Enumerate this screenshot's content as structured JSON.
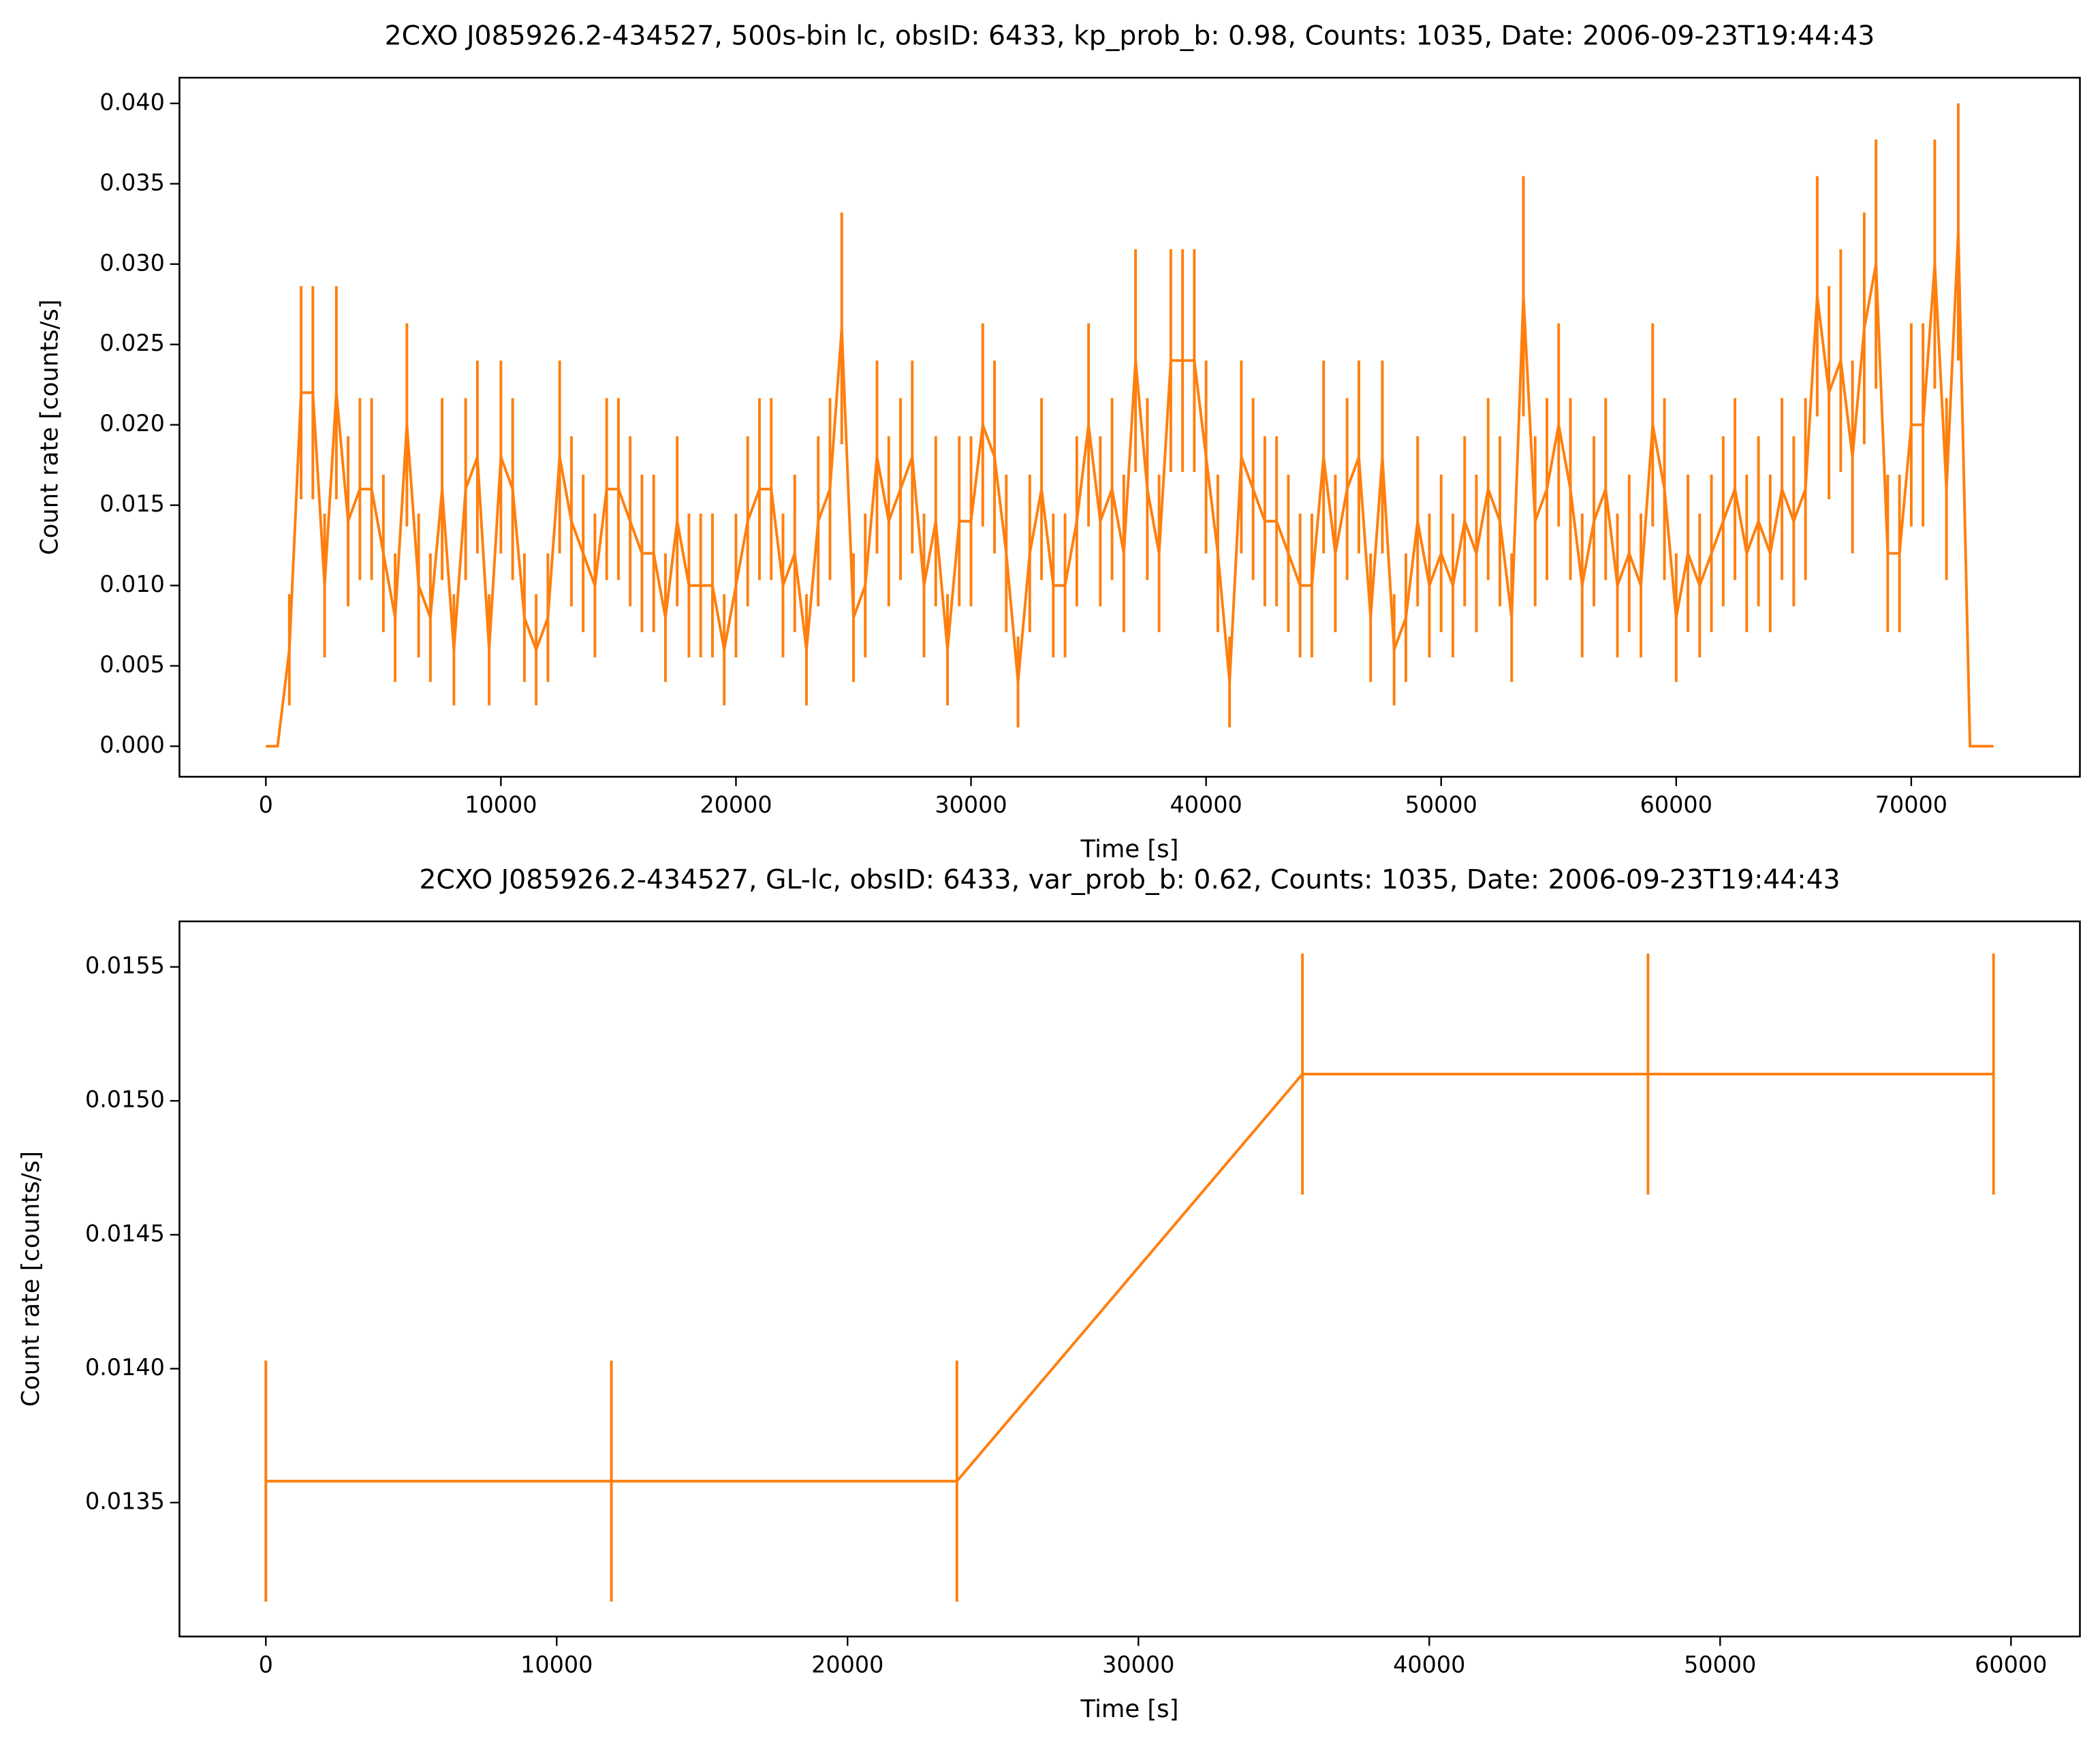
{
  "chart_data": [
    {
      "type": "errorbar",
      "title": "2CXO J085926.2-434527, 500s-bin lc, obsID: 6433, kp_prob_b: 0.98, Counts: 1035, Date: 2006-09-23T19:44:43",
      "xlabel": "Time [s]",
      "ylabel": "Count rate [counts/s]",
      "color": "#ff7f0e",
      "x": [
        0,
        500,
        1000,
        1500,
        2000,
        2500,
        3000,
        3500,
        4000,
        4500,
        5000,
        5500,
        6000,
        6500,
        7000,
        7500,
        8000,
        8500,
        9000,
        9500,
        10000,
        10500,
        11000,
        11500,
        12000,
        12500,
        13000,
        13500,
        14000,
        14500,
        15000,
        15500,
        16000,
        16500,
        17000,
        17500,
        18000,
        18500,
        19000,
        19500,
        20000,
        20500,
        21000,
        21500,
        22000,
        22500,
        23000,
        23500,
        24000,
        24500,
        25000,
        25500,
        26000,
        26500,
        27000,
        27500,
        28000,
        28500,
        29000,
        29500,
        30000,
        30500,
        31000,
        31500,
        32000,
        32500,
        33000,
        33500,
        34000,
        34500,
        35000,
        35500,
        36000,
        36500,
        37000,
        37500,
        38000,
        38500,
        39000,
        39500,
        40000,
        40500,
        41000,
        41500,
        42000,
        42500,
        43000,
        43500,
        44000,
        44500,
        45000,
        45500,
        46000,
        46500,
        47000,
        47500,
        48000,
        48500,
        49000,
        49500,
        50000,
        50500,
        51000,
        51500,
        52000,
        52500,
        53000,
        53500,
        54000,
        54500,
        55000,
        55500,
        56000,
        56500,
        57000,
        57500,
        58000,
        58500,
        59000,
        59500,
        60000,
        60500,
        61000,
        61500,
        62000,
        62500,
        63000,
        63500,
        64000,
        64500,
        65000,
        65500,
        66000,
        66500,
        67000,
        67500,
        68000,
        68500,
        69000,
        69500,
        70000,
        70500,
        71000,
        71500,
        72000,
        72500,
        73000,
        73500
      ],
      "values": [
        0,
        0,
        0.006,
        0.022,
        0.022,
        0.01,
        0.022,
        0.014,
        0.016,
        0.016,
        0.012,
        0.008,
        0.02,
        0.01,
        0.008,
        0.016,
        0.006,
        0.016,
        0.018,
        0.006,
        0.018,
        0.016,
        0.008,
        0.006,
        0.008,
        0.018,
        0.014,
        0.012,
        0.01,
        0.016,
        0.016,
        0.014,
        0.012,
        0.012,
        0.008,
        0.014,
        0.01,
        0.01,
        0.01,
        0.006,
        0.01,
        0.014,
        0.016,
        0.016,
        0.01,
        0.012,
        0.006,
        0.014,
        0.016,
        0.026,
        0.008,
        0.01,
        0.018,
        0.014,
        0.016,
        0.018,
        0.01,
        0.014,
        0.006,
        0.014,
        0.014,
        0.02,
        0.018,
        0.012,
        0.004,
        0.012,
        0.016,
        0.01,
        0.01,
        0.014,
        0.02,
        0.014,
        0.016,
        0.012,
        0.024,
        0.016,
        0.012,
        0.024,
        0.024,
        0.024,
        0.018,
        0.012,
        0.004,
        0.018,
        0.016,
        0.014,
        0.014,
        0.012,
        0.01,
        0.01,
        0.018,
        0.012,
        0.016,
        0.018,
        0.008,
        0.018,
        0.006,
        0.008,
        0.014,
        0.01,
        0.012,
        0.01,
        0.014,
        0.012,
        0.016,
        0.014,
        0.008,
        0.028,
        0.014,
        0.016,
        0.02,
        0.016,
        0.01,
        0.014,
        0.016,
        0.01,
        0.012,
        0.01,
        0.02,
        0.016,
        0.008,
        0.012,
        0.01,
        0.012,
        0.014,
        0.016,
        0.012,
        0.014,
        0.012,
        0.016,
        0.014,
        0.016,
        0.028,
        0.022,
        0.024,
        0.018,
        0.026,
        0.03,
        0.012,
        0.012,
        0.02,
        0.02,
        0.03,
        0.016,
        0.032,
        0,
        0,
        0
      ],
      "errors": [
        0,
        0,
        0.00346,
        0.00663,
        0.00663,
        0.00447,
        0.00663,
        0.00529,
        0.00566,
        0.00566,
        0.0049,
        0.004,
        0.00632,
        0.00447,
        0.004,
        0.00566,
        0.00346,
        0.00566,
        0.006,
        0.00346,
        0.006,
        0.00566,
        0.004,
        0.00346,
        0.004,
        0.006,
        0.00529,
        0.0049,
        0.00447,
        0.00566,
        0.00566,
        0.00529,
        0.0049,
        0.0049,
        0.004,
        0.00529,
        0.00447,
        0.00447,
        0.00447,
        0.00346,
        0.00447,
        0.00529,
        0.00566,
        0.00566,
        0.00447,
        0.0049,
        0.00346,
        0.00529,
        0.00566,
        0.00721,
        0.004,
        0.00447,
        0.006,
        0.00529,
        0.00566,
        0.006,
        0.00447,
        0.00529,
        0.00346,
        0.00529,
        0.00529,
        0.00632,
        0.006,
        0.0049,
        0.00283,
        0.0049,
        0.00566,
        0.00447,
        0.00447,
        0.00529,
        0.00632,
        0.00529,
        0.00566,
        0.0049,
        0.00693,
        0.00566,
        0.0049,
        0.00693,
        0.00693,
        0.00693,
        0.006,
        0.0049,
        0.00283,
        0.006,
        0.00566,
        0.00529,
        0.00529,
        0.0049,
        0.00447,
        0.00447,
        0.006,
        0.0049,
        0.00566,
        0.006,
        0.004,
        0.006,
        0.00346,
        0.004,
        0.00529,
        0.00447,
        0.0049,
        0.00447,
        0.00529,
        0.0049,
        0.00566,
        0.00529,
        0.004,
        0.00748,
        0.00529,
        0.00566,
        0.00632,
        0.00566,
        0.00447,
        0.00529,
        0.00566,
        0.00447,
        0.0049,
        0.00447,
        0.00632,
        0.00566,
        0.004,
        0.0049,
        0.00447,
        0.0049,
        0.00529,
        0.00566,
        0.0049,
        0.00529,
        0.0049,
        0.00566,
        0.00529,
        0.00566,
        0.00748,
        0.00663,
        0.00693,
        0.006,
        0.00721,
        0.00775,
        0.0049,
        0.0049,
        0.00632,
        0.00632,
        0.00775,
        0.00566,
        0.008,
        0,
        0,
        0
      ],
      "xlim": [
        -3675,
        77175
      ],
      "ylim": [
        -0.0019,
        0.0416
      ],
      "xticks": [
        0,
        10000,
        20000,
        30000,
        40000,
        50000,
        60000,
        70000
      ],
      "yticks": [
        {
          "value": 0,
          "label": "0.000"
        },
        {
          "value": 0.005,
          "label": "0.005"
        },
        {
          "value": 0.01,
          "label": "0.010"
        },
        {
          "value": 0.015,
          "label": "0.015"
        },
        {
          "value": 0.02,
          "label": "0.020"
        },
        {
          "value": 0.025,
          "label": "0.025"
        },
        {
          "value": 0.03,
          "label": "0.030"
        },
        {
          "value": 0.035,
          "label": "0.035"
        },
        {
          "value": 0.04,
          "label": "0.040"
        }
      ]
    },
    {
      "type": "errorbar",
      "title": "2CXO J085926.2-434527, GL-lc, obsID: 6433, var_prob_b: 0.62, Counts: 1035, Date: 2006-09-23T19:44:43",
      "xlabel": "Time [s]",
      "ylabel": "Count rate [counts/s]",
      "color": "#ff7f0e",
      "x": [
        0,
        11880,
        23760,
        35640,
        47520,
        59400
      ],
      "values": [
        0.01358,
        0.01358,
        0.01358,
        0.0151,
        0.0151,
        0.0151
      ],
      "errors": [
        0.00045,
        0.00045,
        0.00045,
        0.00045,
        0.00045,
        0.00045
      ],
      "xlim": [
        -2970,
        62370
      ],
      "ylim": [
        0.013,
        0.01567
      ],
      "xticks": [
        0,
        10000,
        20000,
        30000,
        40000,
        50000,
        60000
      ],
      "yticks": [
        {
          "value": 0.0135,
          "label": "0.0135"
        },
        {
          "value": 0.014,
          "label": "0.0140"
        },
        {
          "value": 0.0145,
          "label": "0.0145"
        },
        {
          "value": 0.015,
          "label": "0.0150"
        },
        {
          "value": 0.0155,
          "label": "0.0155"
        }
      ]
    }
  ]
}
